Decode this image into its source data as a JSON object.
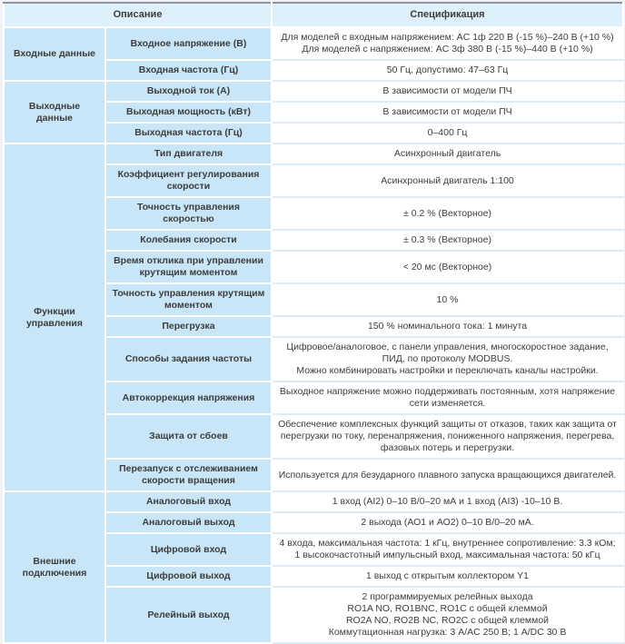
{
  "colors": {
    "cell_blue": "#c8e6f7",
    "header_blue": "#ddf0fb",
    "row_divider_blue": "#d9ecf8",
    "border_white": "#ffffff",
    "table_top_border": "#8f9699",
    "page_background": "#f1f2f3",
    "text_dark": "#3d3d3d"
  },
  "table": {
    "header": {
      "description": "Описание",
      "specification": "Спецификация"
    },
    "sections": [
      {
        "category": "Входные данные",
        "rows": [
          {
            "param": "Входное напряжение (В)",
            "spec": "Для моделей с входным напряжением: AC 1ф 220 В (-15 %)–240 В (+10 %)\nДля моделей с напряжением: AC 3ф 380 В (-15 %)–440 В (+10 %)"
          },
          {
            "param": "Входная частота (Гц)",
            "spec": "50 Гц, допустимо: 47–63 Гц"
          }
        ]
      },
      {
        "category": "Выходные данные",
        "rows": [
          {
            "param": "Выходной ток (А)",
            "spec": "В зависимости от модели ПЧ"
          },
          {
            "param": "Выходная мощность (кВт)",
            "spec": "В зависимости от модели ПЧ"
          },
          {
            "param": "Выходная частота (Гц)",
            "spec": "0–400 Гц"
          }
        ]
      },
      {
        "category": "Функции управления",
        "rows": [
          {
            "param": "Тип двигателя",
            "spec": "Асинхронный двигатель"
          },
          {
            "param": "Коэффициент регулирования скорости",
            "spec": "Асинхронный двигатель 1:100"
          },
          {
            "param": "Точность управления скоростью",
            "spec": "± 0.2 % (Векторное)"
          },
          {
            "param": "Колебания скорости",
            "spec": "± 0.3 % (Векторное)"
          },
          {
            "param": "Время отклика при управлении\nкрутящим моментом",
            "spec": "< 20 мс (Векторное)"
          },
          {
            "param": "Точность управления крутящим\nмоментом",
            "spec": "10 %"
          },
          {
            "param": "Перегрузка",
            "spec": "150 % номинального тока: 1 минута"
          },
          {
            "param": "Способы задания частоты",
            "spec": "Цифровое/аналоговое, с панели управления, многоскоростное задание,\nПИД, по протоколу MODBUS.\nМожно комбинировать настройки и переключать каналы настройки."
          },
          {
            "param": "Автокоррекция напряжения",
            "spec": "Выходное напряжение можно поддерживать постоянным, хотя напряжение\nсети изменяется."
          },
          {
            "param": "Защита от сбоев",
            "spec": "Обеспечение комплексных функций защиты от отказов, таких как защита от\nперегрузки по току, перенапряжения, пониженного напряжения, перегрева,\nфазовых потерь и перегрузки."
          },
          {
            "param": "Перезапуск с отслеживанием\nскорости вращения",
            "spec": "Используется для безударного плавного запуска вращающихся двигателей."
          }
        ]
      },
      {
        "category": "Внешние подключения",
        "rows": [
          {
            "param": "Аналоговый вход",
            "spec": "1 вход (AI2) 0–10 В/0–20 мА и 1 вход (AI3) -10–10 В."
          },
          {
            "param": "Аналоговый выход",
            "spec": "2 выхода (АО1 и АО2) 0–10 В/0–20 мА."
          },
          {
            "param": "Цифровой вход",
            "spec": "4 входа, максимальная частота: 1 кГц, внутреннее сопротивление: 3.3 кОм;\n1 высокочастотный импульсный вход, максимальная частота: 50 кГц"
          },
          {
            "param": "Цифровой выход",
            "spec": "1 выход с открытым коллектором Y1"
          },
          {
            "param": "Релейный выход",
            "spec": "2 программируемых релейных выхода\nRO1A NO, RO1BNC, RO1C с общей клеммой\nRO2A NO, RO2B NC, RO2C с общей клеммой\nКоммутационная нагрузка: 3 А/AC 250 В; 1 А/DC 30 В"
          }
        ]
      }
    ]
  }
}
